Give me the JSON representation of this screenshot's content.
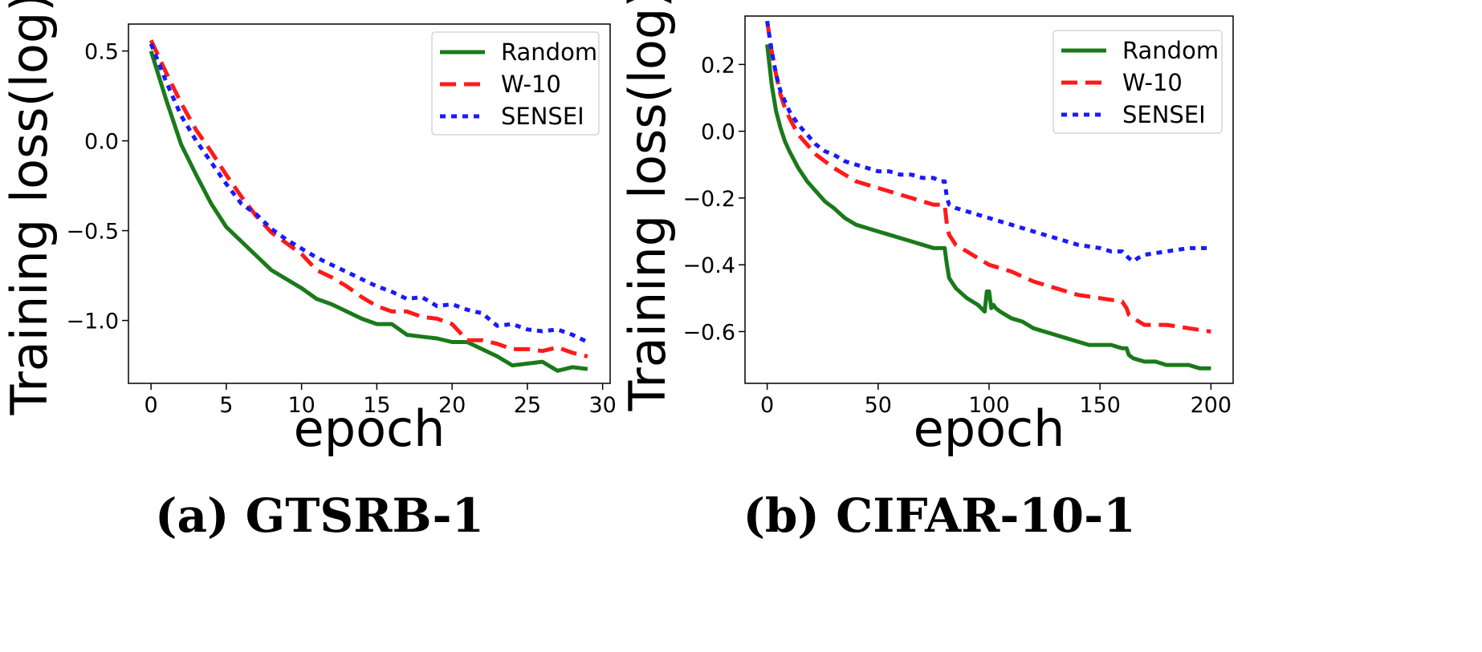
{
  "chart_data": [
    {
      "type": "line",
      "caption": "(a) GTSRB-1",
      "xlabel": "epoch",
      "ylabel": "Training loss(log)",
      "xlim": [
        -1.5,
        30.5
      ],
      "ylim": [
        -1.35,
        0.65
      ],
      "xticks": [
        0,
        5,
        10,
        15,
        20,
        25,
        30
      ],
      "yticks": [
        0.5,
        0.0,
        -0.5,
        -1.0
      ],
      "xtick_labels": [
        "0",
        "5",
        "10",
        "15",
        "20",
        "25",
        "30"
      ],
      "ytick_labels": [
        "0.5",
        "0.0",
        "−0.5",
        "−1.0"
      ],
      "legend_position": "top-right",
      "series": [
        {
          "name": "Random",
          "color": "#1a7a1a",
          "style": "solid",
          "x": [
            0,
            1,
            2,
            3,
            4,
            5,
            6,
            7,
            8,
            9,
            10,
            11,
            12,
            13,
            14,
            15,
            16,
            17,
            18,
            19,
            20,
            21,
            22,
            23,
            24,
            25,
            26,
            27,
            28,
            29
          ],
          "y": [
            0.5,
            0.23,
            -0.02,
            -0.19,
            -0.35,
            -0.48,
            -0.56,
            -0.64,
            -0.72,
            -0.77,
            -0.82,
            -0.88,
            -0.91,
            -0.95,
            -0.99,
            -1.02,
            -1.02,
            -1.08,
            -1.09,
            -1.1,
            -1.12,
            -1.12,
            -1.16,
            -1.2,
            -1.25,
            -1.24,
            -1.23,
            -1.28,
            -1.26,
            -1.27
          ]
        },
        {
          "name": "W-10",
          "color": "#ff1a1a",
          "style": "dashed",
          "x": [
            0,
            1,
            2,
            3,
            4,
            5,
            6,
            7,
            8,
            9,
            10,
            11,
            12,
            13,
            14,
            15,
            16,
            17,
            18,
            19,
            20,
            21,
            22,
            23,
            24,
            25,
            26,
            27,
            28,
            29
          ],
          "y": [
            0.56,
            0.38,
            0.21,
            0.06,
            -0.06,
            -0.19,
            -0.31,
            -0.42,
            -0.51,
            -0.57,
            -0.63,
            -0.72,
            -0.76,
            -0.81,
            -0.87,
            -0.92,
            -0.95,
            -0.95,
            -0.98,
            -0.99,
            -1.02,
            -1.11,
            -1.11,
            -1.13,
            -1.16,
            -1.16,
            -1.17,
            -1.15,
            -1.18,
            -1.2
          ]
        },
        {
          "name": "SENSEI",
          "color": "#1a1aff",
          "style": "dotted",
          "x": [
            0,
            1,
            2,
            3,
            4,
            5,
            6,
            7,
            8,
            9,
            10,
            11,
            12,
            13,
            14,
            15,
            16,
            17,
            18,
            19,
            20,
            21,
            22,
            23,
            24,
            25,
            26,
            27,
            28,
            29
          ],
          "y": [
            0.54,
            0.33,
            0.14,
            0.0,
            -0.12,
            -0.24,
            -0.35,
            -0.41,
            -0.49,
            -0.55,
            -0.6,
            -0.65,
            -0.69,
            -0.73,
            -0.77,
            -0.81,
            -0.84,
            -0.88,
            -0.87,
            -0.92,
            -0.91,
            -0.94,
            -0.96,
            -1.03,
            -1.02,
            -1.05,
            -1.06,
            -1.05,
            -1.08,
            -1.12
          ]
        }
      ]
    },
    {
      "type": "line",
      "caption": "(b) CIFAR-10-1",
      "xlabel": "epoch",
      "ylabel": "Training loss(log)",
      "xlim": [
        -10,
        210
      ],
      "ylim": [
        -0.755,
        0.345
      ],
      "xticks": [
        0,
        50,
        100,
        150,
        200
      ],
      "yticks": [
        0.2,
        0.0,
        -0.2,
        -0.4,
        -0.6
      ],
      "xtick_labels": [
        "0",
        "50",
        "100",
        "150",
        "200"
      ],
      "ytick_labels": [
        "0.2",
        "0.0",
        "−0.2",
        "−0.4",
        "−0.6"
      ],
      "legend_position": "top-right",
      "series": [
        {
          "name": "Random",
          "color": "#1a7a1a",
          "style": "solid",
          "x": [
            0,
            2,
            4,
            6,
            8,
            10,
            14,
            18,
            22,
            26,
            30,
            35,
            40,
            45,
            50,
            55,
            60,
            65,
            70,
            75,
            78,
            80,
            81,
            82,
            85,
            90,
            95,
            98,
            99,
            100,
            101,
            102,
            103,
            105,
            110,
            115,
            120,
            125,
            130,
            135,
            140,
            145,
            150,
            155,
            160,
            162,
            163,
            165,
            170,
            175,
            180,
            185,
            190,
            195,
            200
          ],
          "y": [
            0.26,
            0.14,
            0.06,
            0.01,
            -0.03,
            -0.06,
            -0.11,
            -0.15,
            -0.18,
            -0.21,
            -0.23,
            -0.26,
            -0.28,
            -0.29,
            -0.3,
            -0.31,
            -0.32,
            -0.33,
            -0.34,
            -0.35,
            -0.35,
            -0.35,
            -0.4,
            -0.44,
            -0.47,
            -0.5,
            -0.52,
            -0.54,
            -0.48,
            -0.48,
            -0.53,
            -0.52,
            -0.53,
            -0.54,
            -0.56,
            -0.57,
            -0.59,
            -0.6,
            -0.61,
            -0.62,
            -0.63,
            -0.64,
            -0.64,
            -0.64,
            -0.65,
            -0.65,
            -0.67,
            -0.68,
            -0.69,
            -0.69,
            -0.7,
            -0.7,
            -0.7,
            -0.71,
            -0.71
          ]
        },
        {
          "name": "W-10",
          "color": "#ff1a1a",
          "style": "dashed",
          "x": [
            0,
            2,
            4,
            6,
            8,
            10,
            14,
            18,
            22,
            26,
            30,
            35,
            40,
            45,
            50,
            55,
            60,
            65,
            70,
            75,
            78,
            80,
            81,
            82,
            85,
            90,
            95,
            100,
            110,
            120,
            130,
            140,
            150,
            160,
            162,
            163,
            165,
            170,
            180,
            190,
            200
          ],
          "y": [
            0.33,
            0.24,
            0.17,
            0.11,
            0.07,
            0.04,
            -0.01,
            -0.04,
            -0.07,
            -0.09,
            -0.11,
            -0.13,
            -0.15,
            -0.16,
            -0.17,
            -0.18,
            -0.19,
            -0.2,
            -0.21,
            -0.22,
            -0.22,
            -0.22,
            -0.28,
            -0.31,
            -0.34,
            -0.36,
            -0.38,
            -0.4,
            -0.42,
            -0.45,
            -0.47,
            -0.49,
            -0.5,
            -0.51,
            -0.53,
            -0.55,
            -0.56,
            -0.58,
            -0.58,
            -0.59,
            -0.6
          ]
        },
        {
          "name": "SENSEI",
          "color": "#1a1aff",
          "style": "dotted",
          "x": [
            0,
            2,
            4,
            6,
            8,
            10,
            14,
            18,
            22,
            26,
            30,
            35,
            40,
            45,
            50,
            55,
            60,
            65,
            70,
            75,
            78,
            80,
            81,
            82,
            85,
            90,
            100,
            110,
            120,
            130,
            140,
            150,
            155,
            160,
            163,
            165,
            167,
            170,
            180,
            190,
            200
          ],
          "y": [
            0.33,
            0.24,
            0.17,
            0.12,
            0.09,
            0.06,
            0.02,
            -0.01,
            -0.04,
            -0.06,
            -0.07,
            -0.09,
            -0.1,
            -0.11,
            -0.12,
            -0.12,
            -0.13,
            -0.13,
            -0.14,
            -0.14,
            -0.15,
            -0.15,
            -0.2,
            -0.22,
            -0.23,
            -0.24,
            -0.26,
            -0.28,
            -0.3,
            -0.32,
            -0.34,
            -0.35,
            -0.36,
            -0.36,
            -0.38,
            -0.39,
            -0.38,
            -0.37,
            -0.36,
            -0.35,
            -0.35
          ]
        }
      ]
    }
  ]
}
